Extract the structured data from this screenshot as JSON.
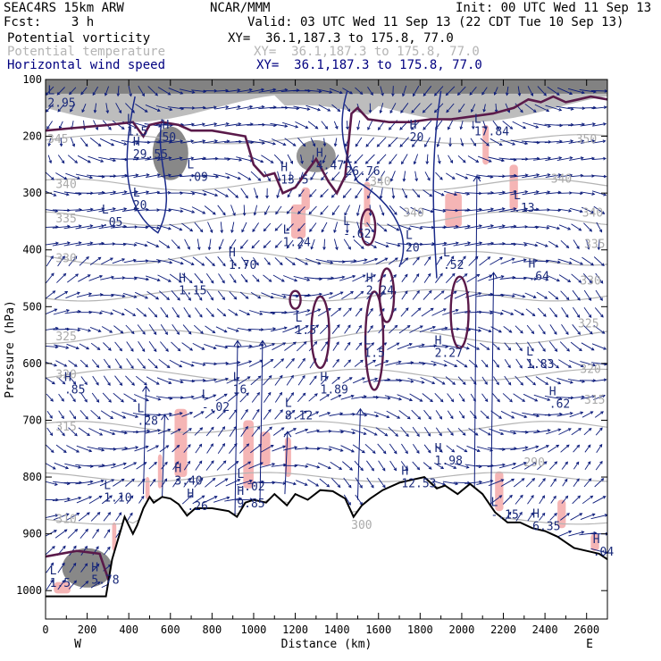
{
  "header": {
    "model": "SEAC4RS 15km ARW",
    "forecast": "Fcst:    3 h",
    "institution": "NCAR/MMM",
    "init": "Init: 00 UTC Wed 11 Sep 13",
    "valid": "Valid: 03 UTC Wed 11 Sep 13 (22 CDT Tue 10 Sep 13)",
    "fields": [
      {
        "name": "Potential vorticity",
        "xy": "XY=  36.1,187.3 to 175.8, 77.0",
        "color": "#000000"
      },
      {
        "name": "Potential temperature",
        "xy": "XY=  36.1,187.3 to 175.8, 77.0",
        "color": "#b4b4b4"
      },
      {
        "name": "Horizontal wind speed",
        "xy": "XY=  36.1,187.3 to 175.8, 77.0",
        "color": "#000080"
      }
    ]
  },
  "chart_data": {
    "type": "cross-section",
    "xlabel": "Distance (km)",
    "ylabel": "Pressure (hPa)",
    "xlim": [
      0,
      2700
    ],
    "ylim": [
      1050,
      100
    ],
    "xticks": [
      "0",
      "200",
      "400",
      "600",
      "800",
      "1000",
      "1200",
      "1400",
      "1600",
      "1800",
      "2000",
      "2200",
      "2400",
      "2600"
    ],
    "yticks": [
      "100",
      "200",
      "300",
      "400",
      "500",
      "600",
      "700",
      "800",
      "900",
      "1000"
    ],
    "end_labels": {
      "west": "W",
      "east": "E"
    },
    "colors": {
      "pv_contour": "#5a1a4a",
      "theta": "#b4b4b4",
      "wind": "#0a1a7a",
      "positive_w": "#f5b5b5",
      "terrain": "#000000"
    },
    "terrain": {
      "x": [
        0,
        120,
        130,
        290,
        320,
        360,
        380,
        420,
        440,
        470,
        500,
        520,
        560,
        600,
        640,
        680,
        720,
        800,
        880,
        920,
        960,
        1000,
        1060,
        1100,
        1160,
        1200,
        1260,
        1320,
        1380,
        1440,
        1480,
        1520,
        1560,
        1620,
        1700,
        1760,
        1820,
        1880,
        1920,
        1980,
        2040,
        2100,
        2160,
        2220,
        2280,
        2340,
        2400,
        2460,
        2540,
        2600,
        2660,
        2700
      ],
      "p": [
        1010,
        1010,
        1010,
        1010,
        945,
        895,
        870,
        900,
        885,
        855,
        835,
        845,
        835,
        838,
        848,
        868,
        855,
        855,
        860,
        870,
        845,
        840,
        845,
        830,
        850,
        830,
        840,
        823,
        825,
        838,
        870,
        850,
        838,
        823,
        810,
        805,
        800,
        820,
        815,
        830,
        812,
        830,
        862,
        880,
        880,
        890,
        895,
        905,
        925,
        930,
        935,
        945
      ]
    },
    "theta_labels": [
      {
        "value": "345",
        "x": 0,
        "p": 205
      },
      {
        "value": "340",
        "x": 40,
        "p": 285
      },
      {
        "value": "335",
        "x": 40,
        "p": 345
      },
      {
        "value": "330",
        "x": 40,
        "p": 415
      },
      {
        "value": "325",
        "x": 40,
        "p": 553
      },
      {
        "value": "320",
        "x": 40,
        "p": 620
      },
      {
        "value": "315",
        "x": 40,
        "p": 712
      },
      {
        "value": "310",
        "x": 40,
        "p": 875
      },
      {
        "value": "340",
        "x": 1550,
        "p": 280
      },
      {
        "value": "340",
        "x": 1710,
        "p": 335
      },
      {
        "value": "350",
        "x": 2540,
        "p": 205
      },
      {
        "value": "340",
        "x": 2420,
        "p": 275
      },
      {
        "value": "340",
        "x": 2570,
        "p": 335
      },
      {
        "value": "335",
        "x": 2580,
        "p": 390
      },
      {
        "value": "330",
        "x": 2560,
        "p": 455
      },
      {
        "value": "325",
        "x": 2550,
        "p": 530
      },
      {
        "value": "320",
        "x": 2560,
        "p": 610
      },
      {
        "value": "315",
        "x": 2580,
        "p": 665
      },
      {
        "value": "300",
        "x": 1460,
        "p": 885
      },
      {
        "value": "290",
        "x": 2290,
        "p": 775
      }
    ],
    "hl_labels": [
      {
        "type": "L",
        "value": "2.95",
        "x": 10,
        "p": 145
      },
      {
        "type": "H",
        "value": "29.55",
        "x": 420,
        "p": 235
      },
      {
        "type": "H",
        "value": "50",
        "x": 560,
        "p": 205
      },
      {
        "type": "L",
        "value": "1.5",
        "x": 390,
        "p": 195
      },
      {
        "type": "L",
        "value": ".09",
        "x": 680,
        "p": 275
      },
      {
        "type": "H",
        "value": "13.5",
        "x": 1130,
        "p": 280
      },
      {
        "type": "H",
        "value": "4.47",
        "x": 1300,
        "p": 255
      },
      {
        "type": "L",
        "value": "26.76",
        "x": 1440,
        "p": 265
      },
      {
        "type": "L",
        "value": "20",
        "x": 420,
        "p": 325
      },
      {
        "type": "L",
        "value": ".05",
        "x": 270,
        "p": 355
      },
      {
        "type": "L",
        "value": "1.24",
        "x": 1140,
        "p": 390
      },
      {
        "type": "H",
        "value": "1.70",
        "x": 880,
        "p": 430
      },
      {
        "type": "L",
        "value": "-.62",
        "x": 1430,
        "p": 375
      },
      {
        "type": "L",
        "value": "20",
        "x": 1730,
        "p": 400
      },
      {
        "type": "L",
        "value": ".52",
        "x": 1910,
        "p": 430
      },
      {
        "type": "L",
        "value": ".13",
        "x": 2250,
        "p": 330
      },
      {
        "type": "H",
        "value": ".64",
        "x": 2320,
        "p": 450
      },
      {
        "type": "H",
        "value": "1.15",
        "x": 640,
        "p": 475
      },
      {
        "type": "H",
        "value": "2.24",
        "x": 1540,
        "p": 475
      },
      {
        "type": "L",
        "value": "1.5",
        "x": 1200,
        "p": 545
      },
      {
        "type": "L",
        "value": "1.5",
        "x": 1530,
        "p": 585
      },
      {
        "type": "H",
        "value": "2.27",
        "x": 1870,
        "p": 585
      },
      {
        "type": "L",
        "value": "1.83",
        "x": 2310,
        "p": 605
      },
      {
        "type": "H",
        "value": ".85",
        "x": 90,
        "p": 650
      },
      {
        "type": "L",
        "value": ".28",
        "x": 440,
        "p": 705
      },
      {
        "type": "L",
        "value": "-.02",
        "x": 750,
        "p": 680
      },
      {
        "type": "L",
        "value": "16",
        "x": 900,
        "p": 650
      },
      {
        "type": "H",
        "value": "1.89",
        "x": 1320,
        "p": 650
      },
      {
        "type": "L",
        "value": "8.12",
        "x": 1150,
        "p": 695
      },
      {
        "type": "H",
        "value": ".62",
        "x": 2420,
        "p": 675
      },
      {
        "type": "H",
        "value": "1.98",
        "x": 1870,
        "p": 775
      },
      {
        "type": "H",
        "value": "12.53",
        "x": 1710,
        "p": 815
      },
      {
        "type": "L",
        "value": "1.10",
        "x": 280,
        "p": 840
      },
      {
        "type": "H",
        "value": "3.40",
        "x": 620,
        "p": 810
      },
      {
        "type": "L",
        "value": "-.02",
        "x": 920,
        "p": 820
      },
      {
        "type": "H",
        "value": ".26",
        "x": 680,
        "p": 855
      },
      {
        "type": "H",
        "value": "9.85",
        "x": 920,
        "p": 850
      },
      {
        "type": "L",
        "value": "-.15",
        "x": 2140,
        "p": 870
      },
      {
        "type": "H",
        "value": "6.35",
        "x": 2340,
        "p": 890
      },
      {
        "type": "H",
        "value": ".04",
        "x": 2630,
        "p": 935
      },
      {
        "type": "L",
        "value": "1.5",
        "x": 20,
        "p": 990
      },
      {
        "type": "H",
        "value": "5.78",
        "x": 220,
        "p": 985
      },
      {
        "type": "L",
        "value": "17.84",
        "x": 2060,
        "p": 195
      },
      {
        "type": "H",
        "value": "20",
        "x": 1750,
        "p": 205
      }
    ]
  }
}
